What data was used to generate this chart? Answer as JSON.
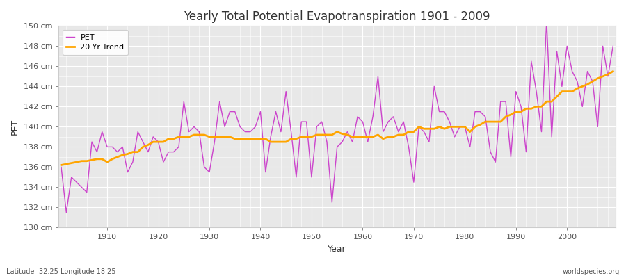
{
  "title": "Yearly Total Potential Evapotranspiration 1901 - 2009",
  "xlabel": "Year",
  "ylabel": "PET",
  "footnote_left": "Latitude -32.25 Longitude 18.25",
  "footnote_right": "worldspecies.org",
  "pet_color": "#CC44CC",
  "trend_color": "#FFA500",
  "fig_bg_color": "#FFFFFF",
  "plot_bg_color": "#E8E8E8",
  "grid_major_color": "#FFFFFF",
  "grid_minor_color": "#FFFFFF",
  "ylim": [
    130,
    150
  ],
  "yticks": [
    130,
    132,
    134,
    136,
    138,
    140,
    142,
    144,
    146,
    148,
    150
  ],
  "xticks": [
    1910,
    1920,
    1930,
    1940,
    1950,
    1960,
    1970,
    1980,
    1990,
    2000
  ],
  "years": [
    1901,
    1902,
    1903,
    1904,
    1905,
    1906,
    1907,
    1908,
    1909,
    1910,
    1911,
    1912,
    1913,
    1914,
    1915,
    1916,
    1917,
    1918,
    1919,
    1920,
    1921,
    1922,
    1923,
    1924,
    1925,
    1926,
    1927,
    1928,
    1929,
    1930,
    1931,
    1932,
    1933,
    1934,
    1935,
    1936,
    1937,
    1938,
    1939,
    1940,
    1941,
    1942,
    1943,
    1944,
    1945,
    1946,
    1947,
    1948,
    1949,
    1950,
    1951,
    1952,
    1953,
    1954,
    1955,
    1956,
    1957,
    1958,
    1959,
    1960,
    1961,
    1962,
    1963,
    1964,
    1965,
    1966,
    1967,
    1968,
    1969,
    1970,
    1971,
    1972,
    1973,
    1974,
    1975,
    1976,
    1977,
    1978,
    1979,
    1980,
    1981,
    1982,
    1983,
    1984,
    1985,
    1986,
    1987,
    1988,
    1989,
    1990,
    1991,
    1992,
    1993,
    1994,
    1995,
    1996,
    1997,
    1998,
    1999,
    2000,
    2001,
    2002,
    2003,
    2004,
    2005,
    2006,
    2007,
    2008,
    2009
  ],
  "pet_values": [
    136.0,
    131.5,
    135.0,
    134.5,
    134.0,
    133.5,
    138.5,
    137.5,
    139.5,
    138.0,
    138.0,
    137.5,
    138.0,
    135.5,
    136.5,
    139.5,
    138.5,
    137.5,
    139.0,
    138.5,
    136.5,
    137.5,
    137.5,
    138.0,
    142.5,
    139.5,
    140.0,
    139.5,
    136.0,
    135.5,
    138.5,
    142.5,
    140.0,
    141.5,
    141.5,
    140.0,
    139.5,
    139.5,
    140.0,
    141.5,
    135.5,
    139.0,
    141.5,
    139.5,
    143.5,
    139.5,
    135.0,
    140.5,
    140.5,
    135.0,
    140.0,
    140.5,
    138.5,
    132.5,
    138.0,
    138.5,
    139.5,
    138.5,
    141.0,
    140.5,
    138.5,
    141.0,
    145.0,
    139.5,
    140.5,
    141.0,
    139.5,
    140.5,
    138.0,
    134.5,
    140.0,
    139.5,
    138.5,
    144.0,
    141.5,
    141.5,
    140.5,
    139.0,
    140.0,
    140.0,
    138.0,
    141.5,
    141.5,
    141.0,
    137.5,
    136.5,
    142.5,
    142.5,
    137.0,
    143.5,
    142.0,
    137.5,
    146.5,
    143.5,
    139.5,
    150.5,
    139.0,
    147.5,
    144.0,
    148.0,
    145.5,
    144.5,
    142.0,
    145.5,
    144.5,
    140.0,
    148.0,
    145.0,
    148.0
  ],
  "trend_years": [
    1901,
    1902,
    1903,
    1904,
    1905,
    1906,
    1907,
    1908,
    1909,
    1910,
    1911,
    1912,
    1913,
    1914,
    1915,
    1916,
    1917,
    1918,
    1919,
    1920,
    1921,
    1922,
    1923,
    1924,
    1925,
    1926,
    1927,
    1928,
    1929,
    1930,
    1931,
    1932,
    1933,
    1934,
    1935,
    1936,
    1937,
    1938,
    1939,
    1940,
    1941,
    1942,
    1943,
    1944,
    1945,
    1946,
    1947,
    1948,
    1949,
    1950,
    1951,
    1952,
    1953,
    1954,
    1955,
    1956,
    1957,
    1958,
    1959,
    1960,
    1961,
    1962,
    1963,
    1964,
    1965,
    1966,
    1967,
    1968,
    1969,
    1970,
    1971,
    1972,
    1973,
    1974,
    1975,
    1976,
    1977,
    1978,
    1979,
    1980,
    1981,
    1982,
    1983,
    1984,
    1985,
    1986,
    1987,
    1988,
    1989,
    1990,
    1991,
    1992,
    1993,
    1994,
    1995,
    1996,
    1997,
    1998,
    1999,
    2000,
    2001,
    2002,
    2003,
    2004,
    2005,
    2006,
    2007,
    2008,
    2009
  ],
  "trend_values": [
    136.2,
    136.3,
    136.4,
    136.5,
    136.6,
    136.6,
    136.7,
    136.8,
    136.8,
    136.5,
    136.8,
    137.0,
    137.2,
    137.3,
    137.5,
    137.5,
    138.0,
    138.2,
    138.5,
    138.5,
    138.5,
    138.8,
    138.8,
    139.0,
    139.0,
    139.0,
    139.2,
    139.2,
    139.2,
    139.0,
    139.0,
    139.0,
    139.0,
    139.0,
    138.8,
    138.8,
    138.8,
    138.8,
    138.8,
    138.8,
    138.8,
    138.5,
    138.5,
    138.5,
    138.5,
    138.8,
    138.8,
    139.0,
    139.0,
    139.0,
    139.2,
    139.2,
    139.2,
    139.2,
    139.5,
    139.3,
    139.2,
    139.0,
    139.0,
    139.0,
    139.0,
    139.0,
    139.2,
    138.8,
    139.0,
    139.0,
    139.2,
    139.2,
    139.5,
    139.5,
    140.0,
    139.8,
    139.8,
    139.8,
    140.0,
    139.8,
    140.0,
    140.0,
    140.0,
    140.0,
    139.5,
    140.0,
    140.2,
    140.5,
    140.5,
    140.5,
    140.5,
    141.0,
    141.2,
    141.5,
    141.5,
    141.8,
    141.8,
    142.0,
    142.0,
    142.5,
    142.5,
    143.0,
    143.5,
    143.5,
    143.5,
    143.8,
    144.0,
    144.2,
    144.5,
    144.8,
    145.0,
    145.2,
    145.5
  ]
}
